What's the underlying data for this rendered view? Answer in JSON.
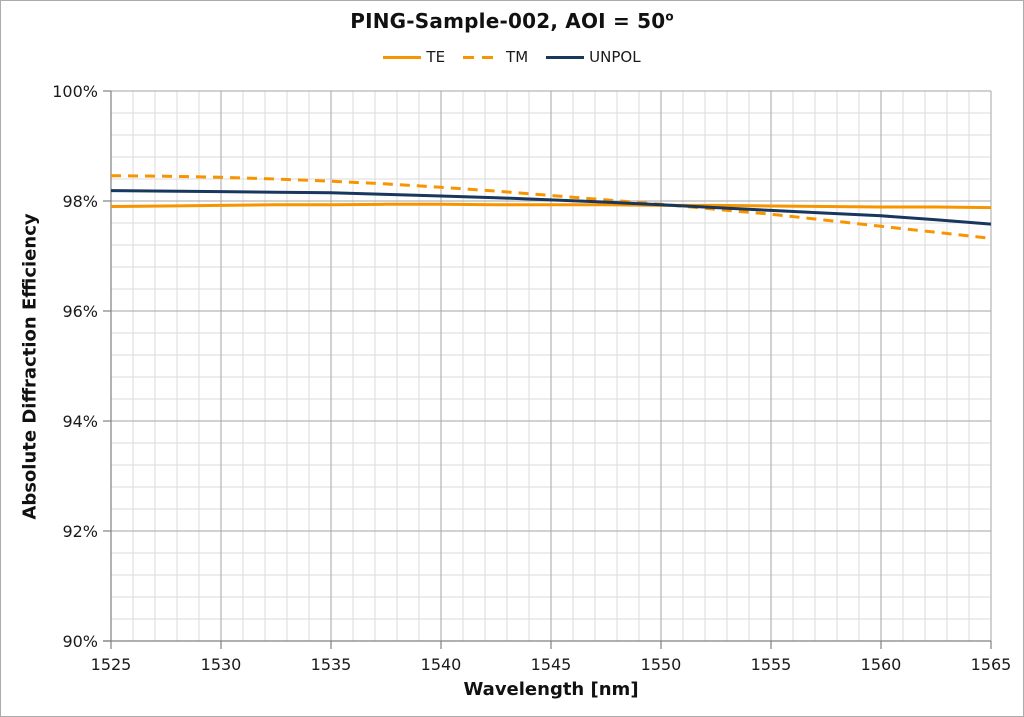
{
  "header": {
    "title_main": "PING-Sample-002, AOI = 50",
    "title_superscript": "o"
  },
  "legend": {
    "position": "top-center",
    "items": [
      {
        "id": "te",
        "label": "TE",
        "color": "#F79500",
        "style": "solid"
      },
      {
        "id": "tm",
        "label": "TM",
        "color": "#F79500",
        "style": "dashed"
      },
      {
        "id": "unpol",
        "label": "UNPOL",
        "color": "#17375E",
        "style": "solid"
      }
    ]
  },
  "axes": {
    "x_label": "Wavelength [nm]",
    "y_label": "Absolute Diffraction Efficiency"
  },
  "chart_data": {
    "type": "line",
    "title": "PING-Sample-002, AOI = 50°",
    "xlabel": "Wavelength [nm]",
    "ylabel": "Absolute Diffraction Efficiency",
    "xlim": [
      1525,
      1565
    ],
    "ylim": [
      90,
      100
    ],
    "x_major_ticks": [
      1525,
      1530,
      1535,
      1540,
      1545,
      1550,
      1555,
      1560,
      1565
    ],
    "x_tick_labels": [
      "1525",
      "1530",
      "1535",
      "1540",
      "1545",
      "1550",
      "1555",
      "1560",
      "1565"
    ],
    "x_minor_step": 1,
    "y_major_ticks": [
      90,
      92,
      94,
      96,
      98,
      100
    ],
    "y_tick_labels": [
      "90%",
      "92%",
      "94%",
      "96%",
      "98%",
      "100%"
    ],
    "y_minor_step": 0.4,
    "grid": {
      "minor_color": "#DBDBDB",
      "major_color": "#A6A6A6",
      "axis_color": "#808080"
    },
    "legend_position": "top-center",
    "x": [
      1525,
      1527.5,
      1530,
      1532.5,
      1535,
      1537.5,
      1540,
      1542.5,
      1545,
      1547.5,
      1550,
      1552.5,
      1555,
      1557.5,
      1560,
      1562.5,
      1565
    ],
    "series": [
      {
        "name": "TE",
        "color": "#F79500",
        "line_style": "solid",
        "values": [
          97.9,
          97.91,
          97.92,
          97.93,
          97.93,
          97.94,
          97.94,
          97.93,
          97.93,
          97.93,
          97.92,
          97.92,
          97.91,
          97.9,
          97.89,
          97.89,
          97.88
        ]
      },
      {
        "name": "TM",
        "color": "#F79500",
        "line_style": "dashed",
        "values": [
          98.46,
          98.45,
          98.43,
          98.4,
          98.36,
          98.31,
          98.25,
          98.18,
          98.1,
          98.02,
          97.94,
          97.85,
          97.76,
          97.65,
          97.54,
          97.43,
          97.32
        ]
      },
      {
        "name": "UNPOL",
        "color": "#17375E",
        "line_style": "solid",
        "values": [
          98.19,
          98.18,
          98.17,
          98.16,
          98.15,
          98.12,
          98.09,
          98.06,
          98.02,
          97.98,
          97.93,
          97.88,
          97.83,
          97.78,
          97.73,
          97.66,
          97.58
        ]
      }
    ]
  }
}
